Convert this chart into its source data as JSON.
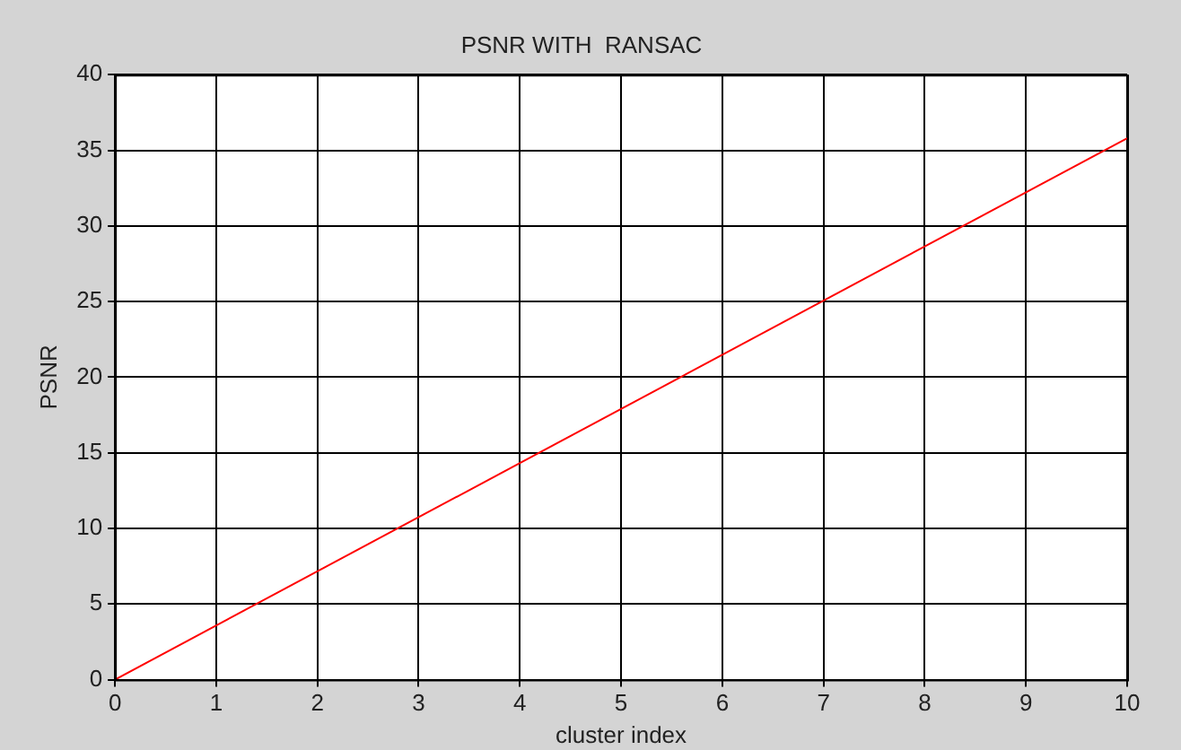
{
  "chart_data": {
    "type": "line",
    "title": "PSNR WITH  RANSAC",
    "xlabel": "cluster index",
    "ylabel": "PSNR",
    "series": [
      {
        "color": "#ff0000",
        "x": [
          0,
          10
        ],
        "values": [
          0,
          35.8
        ]
      }
    ],
    "xlim": [
      0,
      10
    ],
    "xticks": [
      0,
      1,
      2,
      3,
      4,
      5,
      6,
      7,
      8,
      9,
      10
    ],
    "ylim": [
      0,
      40
    ],
    "yticks": [
      0,
      5,
      10,
      15,
      20,
      25,
      30,
      35,
      40
    ],
    "grid": true,
    "legend": false,
    "marker": "none",
    "line_style": "solid"
  }
}
